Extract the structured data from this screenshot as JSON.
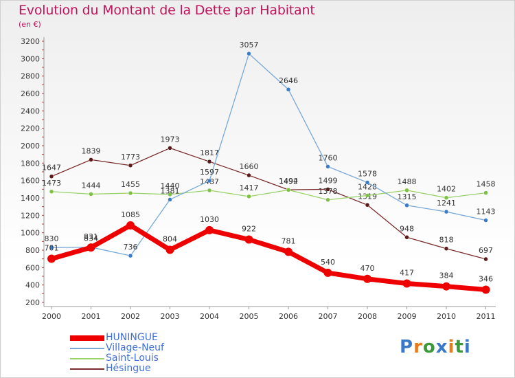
{
  "title": "Evolution du Montant de la Dette par Habitant",
  "subtitle": "(en €)",
  "logo": {
    "text": "Proxiti",
    "letters": [
      {
        "ch": "P",
        "color": "#3a78c8"
      },
      {
        "ch": "r",
        "color": "#e87b1e"
      },
      {
        "ch": "o",
        "color": "#3a9a3a"
      },
      {
        "ch": "x",
        "color": "#3a78c8"
      },
      {
        "ch": "i",
        "color": "#e87b1e"
      },
      {
        "ch": "t",
        "color": "#3a9a3a"
      },
      {
        "ch": "i",
        "color": "#3a78c8"
      }
    ]
  },
  "chart_data": {
    "type": "line",
    "title": "Evolution du Montant de la Dette par Habitant",
    "subtitle": "(en €)",
    "x": [
      "2000",
      "2001",
      "2002",
      "2003",
      "2004",
      "2005",
      "2006",
      "2007",
      "2008",
      "2009",
      "2010",
      "2011"
    ],
    "ylim": [
      200,
      3200
    ],
    "yticks": [
      200,
      400,
      600,
      800,
      1000,
      1200,
      1400,
      1600,
      1800,
      2000,
      2200,
      2400,
      2600,
      2800,
      3000,
      3200
    ],
    "grid": false,
    "legend_position": "bottom-left",
    "series": [
      {
        "name": "Hésingue",
        "color": "#7a2a2a",
        "marker": "#5a1a1a",
        "values": [
          1647,
          1839,
          1773,
          1973,
          1817,
          1660,
          1494,
          1499,
          1319,
          948,
          818,
          697
        ]
      },
      {
        "name": "Saint-Louis",
        "color": "#9ad26a",
        "marker": "#7ec043",
        "values": [
          1473,
          1444,
          1455,
          1440,
          1487,
          1417,
          1492,
          1378,
          1428,
          1488,
          1402,
          1458
        ]
      },
      {
        "name": "Village-Neuf",
        "color": "#78a8d8",
        "marker": "#3a7cc8",
        "values": [
          830,
          834,
          736,
          1381,
          1597,
          3057,
          2646,
          1760,
          1578,
          1315,
          1241,
          1143
        ]
      },
      {
        "name": "HUNINGUE",
        "color": "#ee0000",
        "marker": "#ee0000",
        "values": [
          701,
          831,
          1085,
          804,
          1030,
          922,
          781,
          540,
          470,
          417,
          384,
          346
        ]
      }
    ]
  }
}
